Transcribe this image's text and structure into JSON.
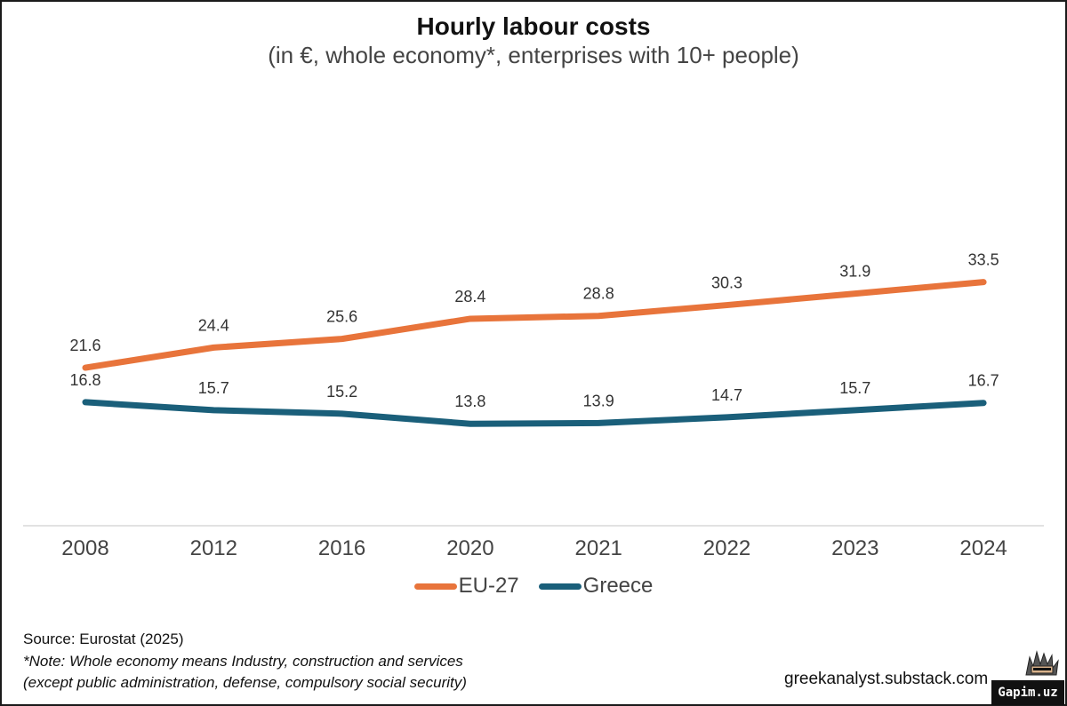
{
  "chart_data": {
    "type": "line",
    "title": "Hourly labour costs",
    "subtitle": "(in €, whole economy*, enterprises with 10+ people)",
    "categories": [
      "2008",
      "2012",
      "2016",
      "2020",
      "2021",
      "2022",
      "2023",
      "2024"
    ],
    "series": [
      {
        "name": "EU-27",
        "color": "#E8743B",
        "values": [
          21.6,
          24.4,
          25.6,
          28.4,
          28.8,
          30.3,
          31.9,
          33.5
        ]
      },
      {
        "name": "Greece",
        "color": "#1A5F7A",
        "values": [
          16.8,
          15.7,
          15.2,
          13.8,
          13.9,
          14.7,
          15.7,
          16.7
        ]
      }
    ],
    "data_labels": true,
    "grid": false,
    "legend_position": "bottom"
  },
  "footer": {
    "source": "Source: Eurostat (2025)",
    "note_line1": "*Note: Whole economy means Industry, construction and services",
    "note_line2": "(except public administration, defense, compulsory social security)",
    "site": "greekanalyst.substack.com",
    "logo_text": "Gapim.uz"
  }
}
